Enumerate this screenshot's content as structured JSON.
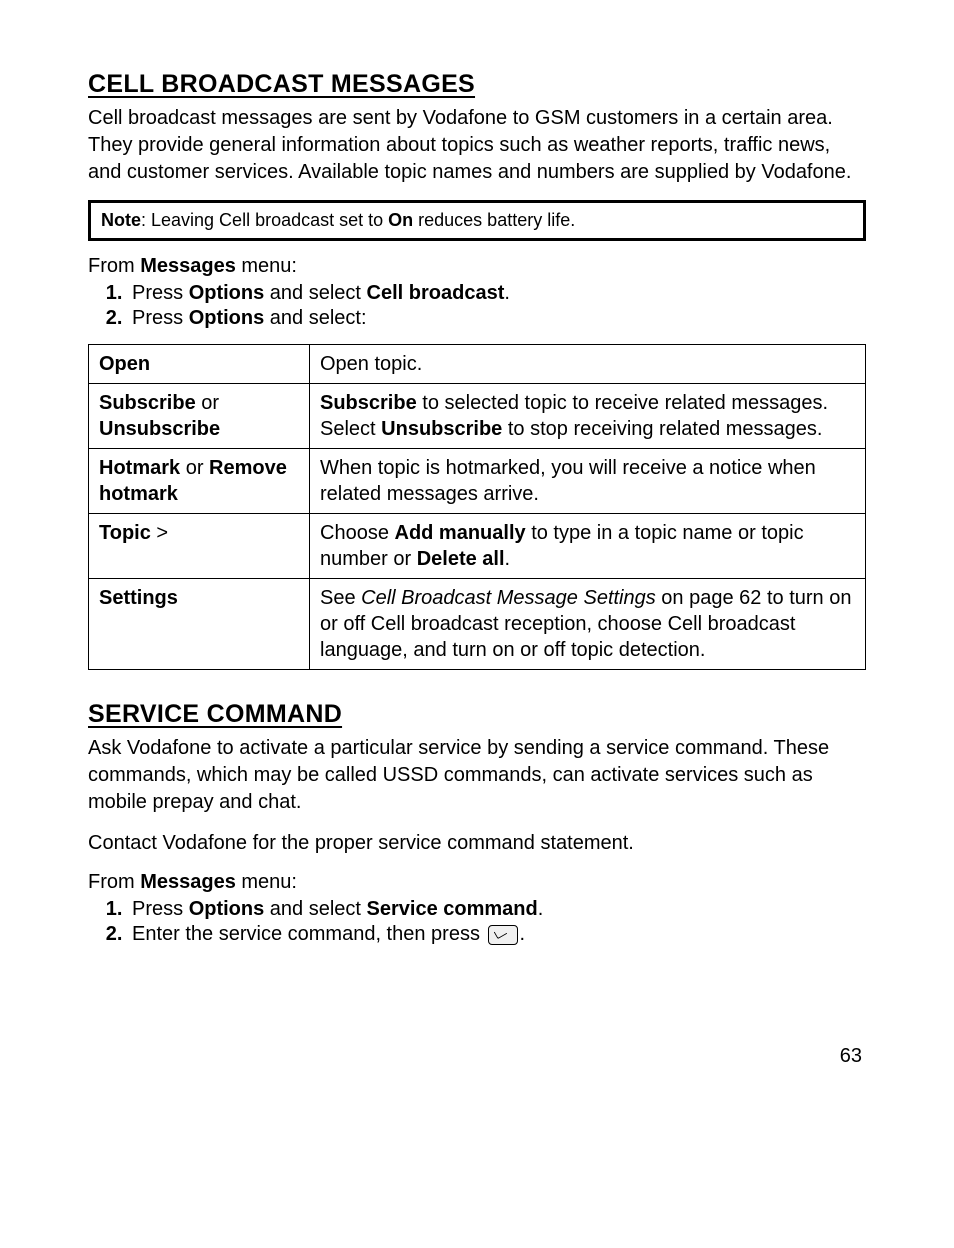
{
  "section1": {
    "heading": "CELL BROADCAST MESSAGES",
    "intro": "Cell broadcast messages are sent by Vodafone to GSM customers in a certain area. They provide general information about topics such as weather reports, traffic news, and customer services. Available topic names and numbers are supplied by Vodafone.",
    "note_prefix": "Note",
    "note_mid1": ":  Leaving Cell broadcast set to ",
    "note_bold": "On",
    "note_tail": " reduces battery life.",
    "from_prefix": "From ",
    "from_bold": "Messages",
    "from_suffix": " menu:",
    "step1_a": "Press ",
    "step1_b": "Options",
    "step1_c": " and select ",
    "step1_d": "Cell broadcast",
    "step1_e": ".",
    "step2_a": "Press ",
    "step2_b": "Options",
    "step2_c": " and select:"
  },
  "table": {
    "rows": [
      {
        "label_html": "Open",
        "desc_html": "Open topic."
      },
      {
        "label_html": "Subscribe <span style='font-weight:normal'>or</span> Unsubscribe",
        "desc_html": "<span class='bold'>Subscribe</span> to selected topic to receive related messages. Select <span class='bold'>Unsubscribe</span> to stop receiving related messages."
      },
      {
        "label_html": "Hotmark <span style='font-weight:normal'>or</span> Remove hotmark",
        "desc_html": "When topic is hotmarked, you will receive a notice when related messages arrive."
      },
      {
        "label_html": "Topic <span style='font-weight:normal'>&gt;</span>",
        "desc_html": "Choose <span class='bold'>Add manually</span> to type in a topic name or topic number or <span class='bold'>Delete all</span>."
      },
      {
        "label_html": "Settings",
        "desc_html": "See <span class='italic'>Cell Broadcast Message Settings</span> on page 62 to turn on or off Cell broadcast reception, choose Cell broadcast language, and turn on or off topic detection."
      }
    ]
  },
  "section2": {
    "heading": "SERVICE COMMAND",
    "intro": "Ask Vodafone to activate a particular service by sending a service command. These commands, which may be called USSD commands, can activate services such as mobile prepay and chat.",
    "contact": "Contact Vodafone for the proper service command statement.",
    "from_prefix": "From ",
    "from_bold": "Messages",
    "from_suffix": " menu:",
    "step1_a": "Press ",
    "step1_b": "Options",
    "step1_c": " and select ",
    "step1_d": "Service command",
    "step1_e": ".",
    "step2_a": "Enter the service command, then press ",
    "step2_b": "."
  },
  "page_number": "63"
}
